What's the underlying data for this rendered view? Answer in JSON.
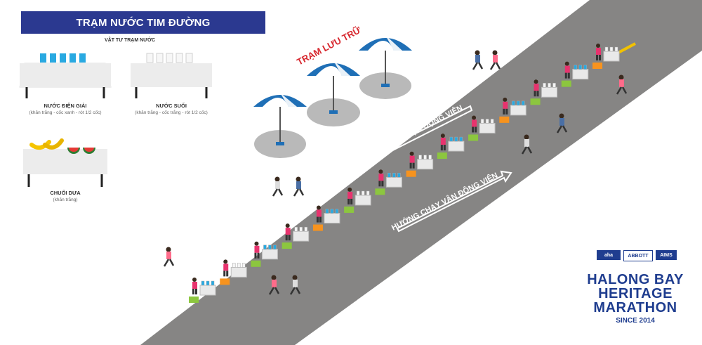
{
  "legend": {
    "title": "TRẠM NƯỚC TIM ĐƯỜNG",
    "supplies_title": "VẬT TƯ TRẠM NƯỚC",
    "items": [
      {
        "name": "NƯỚC ĐIỆN GIẢI",
        "desc": "(khăn trắng - cốc xanh - rót 1/2 cốc)"
      },
      {
        "name": "NƯỚC SUỐI",
        "desc": "(khăn trắng - cốc trắng - rót 1/2 cốc)"
      },
      {
        "name": "CHUỐI DƯA",
        "desc": "(khăn trắng)"
      }
    ]
  },
  "labels": {
    "storage": "TRẠM LƯU TRỮ",
    "direction_upper": "HƯỚNG CHẠY VẬN ĐỘNG VIÊN",
    "direction_lower": "HƯỚNG CHẠY VẬN ĐỘNG VIÊN"
  },
  "logo": {
    "line1": "HALONG BAY",
    "line2": "HERITAGE",
    "line3": "MARATHON",
    "since": "SINCE 2014",
    "sponsors": [
      "aha",
      "ABBOTT",
      "AIMS"
    ]
  },
  "colors": {
    "road": "#868584",
    "title_bar": "#2b3990",
    "storage_label": "#d7282f",
    "umbrella_blue": "#1f6fb6",
    "volunteer_shirt": "#e8336e",
    "crate_green": "#8cc63f",
    "crate_orange": "#f7931e",
    "lane_marking": "#f2c200"
  }
}
